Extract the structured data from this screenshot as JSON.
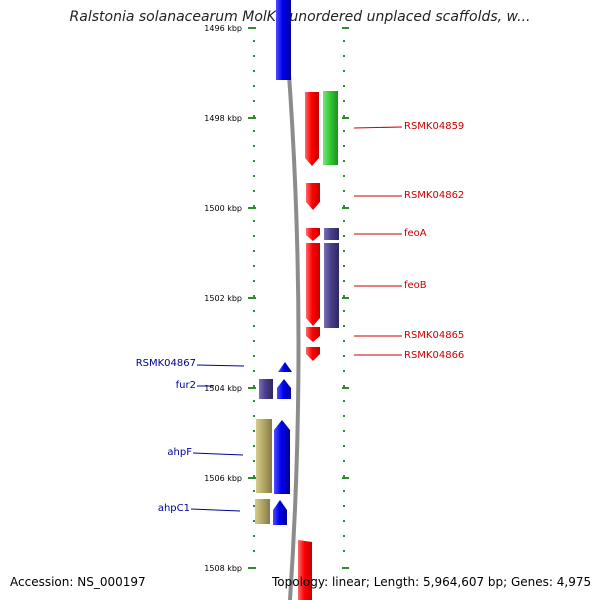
{
  "title": "Ralstonia solanacearum MolK2 unordered unplaced scaffolds, w...",
  "footer": {
    "accession": "Accession: NS_000197",
    "summary": "Topology: linear; Length: 5,964,607 bp; Genes: 4,975"
  },
  "colors": {
    "forward_label": "#cc0000",
    "reverse_label": "#000099",
    "tick": "#2e8b2e",
    "backbone": "#8c8c8c"
  },
  "ticks": [
    {
      "label": "1496 kbp"
    },
    {
      "label": "1498 kbp"
    },
    {
      "label": "1500 kbp"
    },
    {
      "label": "1502 kbp"
    },
    {
      "label": "1504 kbp"
    },
    {
      "label": "1506 kbp"
    },
    {
      "label": "1508 kbp"
    }
  ],
  "labels_right": [
    {
      "text": "RSMK04859"
    },
    {
      "text": "RSMK04862"
    },
    {
      "text": "feoA"
    },
    {
      "text": "feoB"
    },
    {
      "text": "RSMK04865"
    },
    {
      "text": "RSMK04866"
    }
  ],
  "labels_left": [
    {
      "text": "RSMK04867"
    },
    {
      "text": "fur2"
    },
    {
      "text": "ahpF"
    },
    {
      "text": "ahpC1"
    }
  ],
  "feature_colors": {
    "forward_gene": "#ff0000",
    "reverse_gene": "#0000ee",
    "cds_green": "#33cc33",
    "cds_purple": "#4a3f8a",
    "cds_khaki": "#b5a866"
  }
}
